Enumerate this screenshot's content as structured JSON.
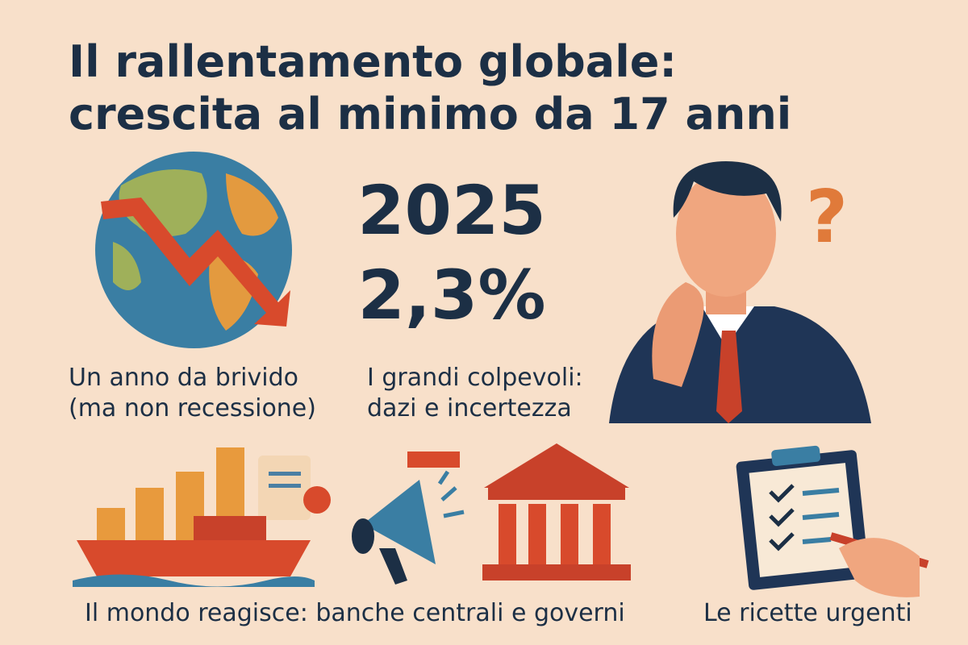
{
  "title": [
    "Il rallentamento globale:",
    "crescita al minimo da 17 anni"
  ],
  "headline": {
    "year": "2025",
    "growth": "2,3%"
  },
  "captions": [
    [
      "Un anno da brivido",
      "(ma non recessione)"
    ],
    [
      "I grandi colpevoli:",
      "dazi e incertezza"
    ],
    "Il mondo reagisce: banche centrali e governi",
    "Le ricette urgenti"
  ]
}
